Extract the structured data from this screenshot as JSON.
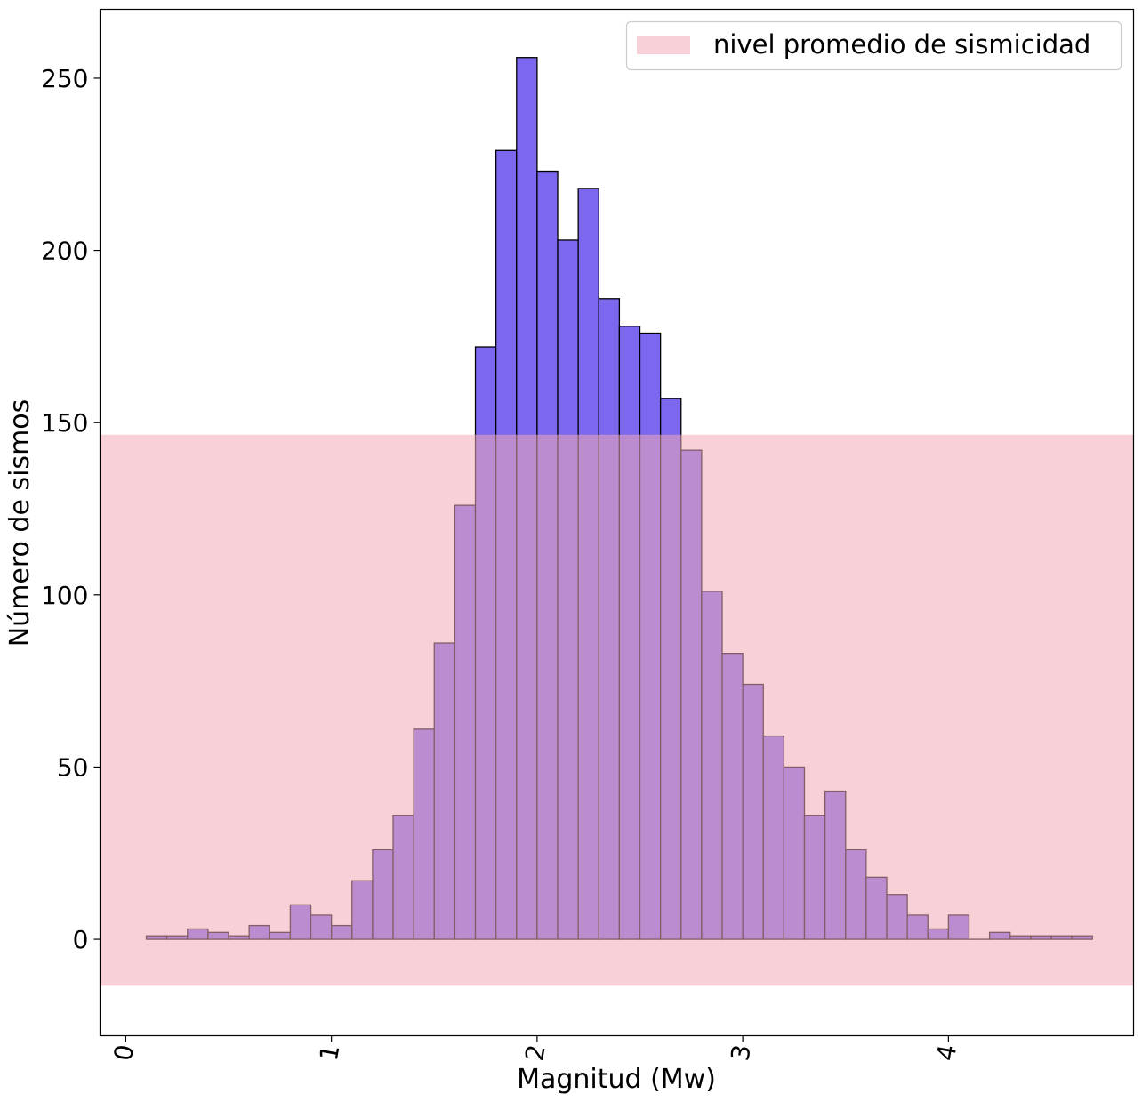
{
  "chart_data": {
    "type": "bar",
    "subtype": "histogram",
    "title": "",
    "xlabel": "Magnitud (Mw)",
    "ylabel": "Número de sismos",
    "xlim": [
      -0.125,
      4.9
    ],
    "ylim": [
      -28,
      270
    ],
    "x_ticks": [
      "0",
      "1",
      "2",
      "3",
      "4"
    ],
    "x_tick_rotation_deg": 80,
    "y_ticks": [
      "0",
      "50",
      "100",
      "150",
      "200",
      "250"
    ],
    "grid": false,
    "bin_width": 0.1,
    "bin_start": 0.1,
    "values": [
      1,
      1,
      3,
      2,
      1,
      4,
      2,
      10,
      7,
      4,
      17,
      26,
      36,
      61,
      86,
      126,
      172,
      229,
      256,
      223,
      203,
      218,
      186,
      178,
      176,
      157,
      142,
      101,
      83,
      74,
      59,
      50,
      36,
      43,
      26,
      18,
      13,
      7,
      3,
      7,
      0,
      2,
      1,
      1,
      1,
      1
    ],
    "bar_color": "#7b68ee",
    "bar_edge_color": "#000000",
    "band": {
      "label": "nivel promedio de sismicidad",
      "y_from": -13.5,
      "y_to": 146.5,
      "color": "#f1a9b8",
      "opacity": 0.55
    },
    "legend": {
      "placement": "top-right",
      "entries": [
        "nivel promedio de sismicidad"
      ]
    }
  }
}
